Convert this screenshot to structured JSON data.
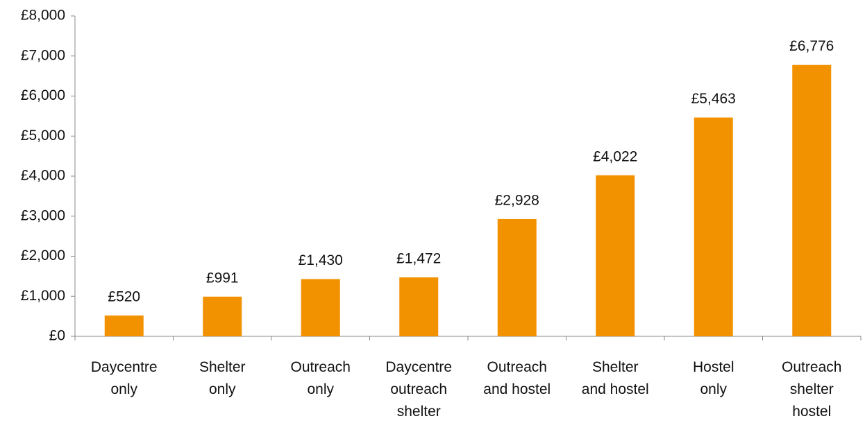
{
  "chart_data": {
    "type": "bar",
    "categories": [
      "Daycentre\nonly",
      "Shelter\nonly",
      "Outreach\nonly",
      "Daycentre\noutreach\nshelter",
      "Outreach\nand hostel",
      "Shelter\nand hostel",
      "Hostel\nonly",
      "Outreach\nshelter\nhostel"
    ],
    "values": [
      520,
      991,
      1430,
      1472,
      2928,
      4022,
      5463,
      6776
    ],
    "value_labels": [
      "£520",
      "£991",
      "£1,430",
      "£1,472",
      "£2,928",
      "£4,022",
      "£5,463",
      "£6,776"
    ],
    "color": "#f39200",
    "ylim": [
      0,
      8000
    ],
    "yticks": [
      {
        "value": 0,
        "label": "£0"
      },
      {
        "value": 1000,
        "label": "£1,000"
      },
      {
        "value": 2000,
        "label": "£2,000"
      },
      {
        "value": 3000,
        "label": "£3,000"
      },
      {
        "value": 4000,
        "label": "£4,000"
      },
      {
        "value": 5000,
        "label": "£5,000"
      },
      {
        "value": 6000,
        "label": "£6,000"
      },
      {
        "value": 7000,
        "label": "£7,000"
      },
      {
        "value": 8000,
        "label": "£8,000"
      }
    ],
    "grid": false
  }
}
